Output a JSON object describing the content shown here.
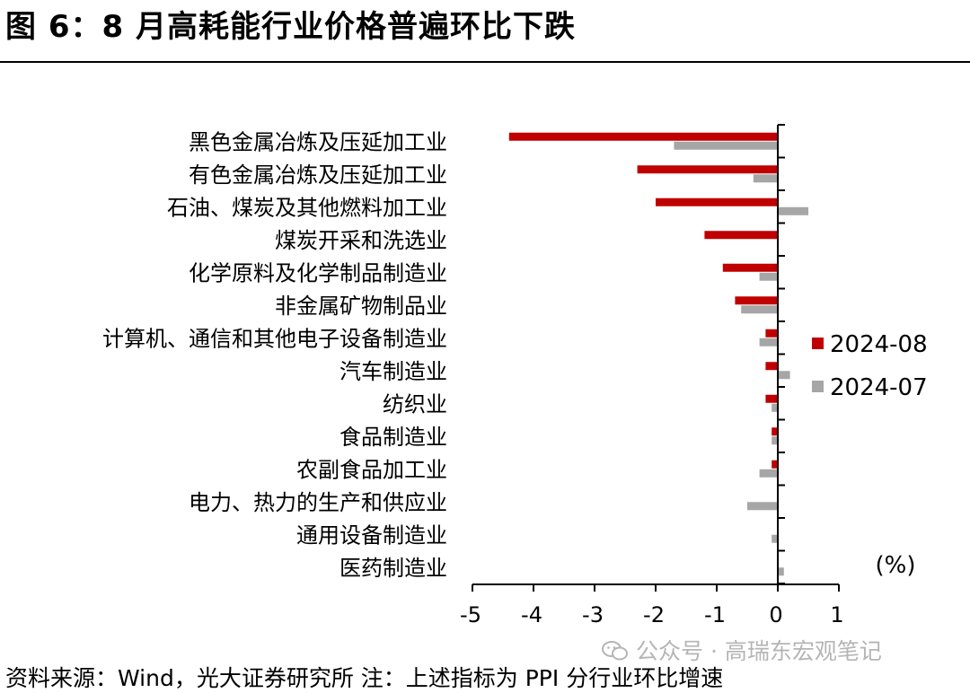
{
  "title": "图 6：8 月高耗能行业价格普遍环比下跌",
  "source": "资料来源：Wind，光大证券研究所 注：上述指标为 PPI 分行业环比增速",
  "watermark": "公众号 · 高瑞东宏观笔记",
  "colors": {
    "s1": "#c00000",
    "s2": "#a6a6a6",
    "axis": "#000000",
    "watermark": "#b5b5b5"
  },
  "chart_data": {
    "type": "bar",
    "orientation": "horizontal",
    "categories": [
      "黑色金属冶炼及压延加工业",
      "有色金属冶炼及压延加工业",
      "石油、煤炭及其他燃料加工业",
      "煤炭开采和洗选业",
      "化学原料及化学制品制造业",
      "非金属矿物制品业",
      "计算机、通信和其他电子设备制造业",
      "汽车制造业",
      "纺织业",
      "食品制造业",
      "农副食品加工业",
      "电力、热力的生产和供应业",
      "通用设备制造业",
      "医药制造业"
    ],
    "series": [
      {
        "name": "2024-08",
        "values": [
          -4.4,
          -2.3,
          -2.0,
          -1.2,
          -0.9,
          -0.7,
          -0.2,
          -0.2,
          -0.2,
          -0.1,
          -0.1,
          0.0,
          0.0,
          0.0
        ]
      },
      {
        "name": "2024-07",
        "values": [
          -1.7,
          -0.4,
          0.5,
          0.0,
          -0.3,
          -0.6,
          -0.3,
          0.2,
          -0.1,
          -0.1,
          -0.3,
          -0.5,
          -0.1,
          0.1
        ]
      }
    ],
    "xlim": [
      -5,
      1
    ],
    "xticks": [
      "-5",
      "-4",
      "-3",
      "-2",
      "-1",
      "0",
      "1"
    ],
    "unit_label": "(%)",
    "legend_position": "right"
  }
}
